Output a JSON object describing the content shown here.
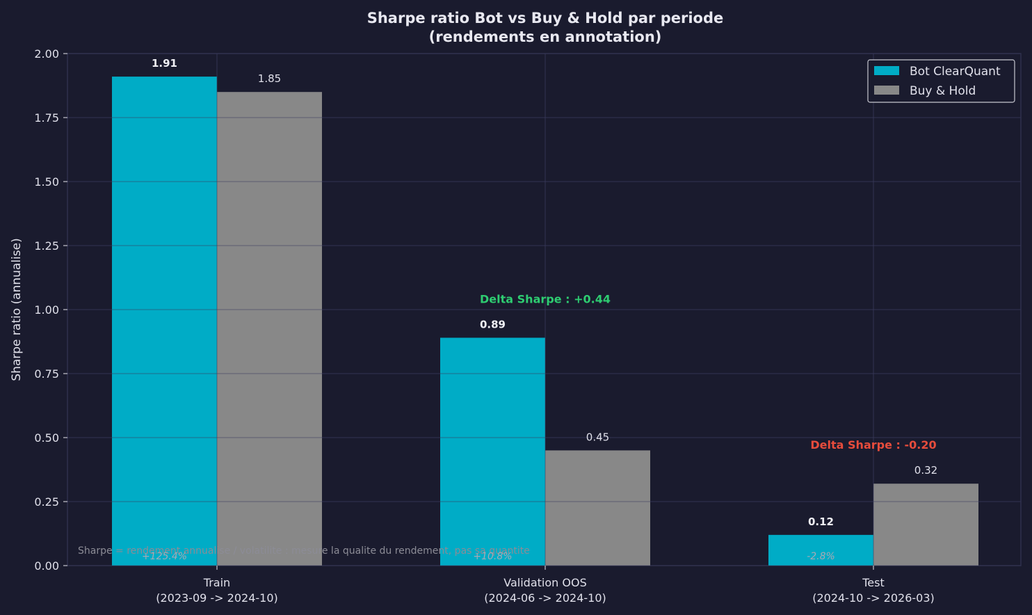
{
  "chart_data": {
    "type": "bar",
    "title": "Sharpe ratio Bot vs Buy & Hold par periode",
    "subtitle": "(rendements en annotation)",
    "ylabel": "Sharpe ratio (annualise)",
    "xlabel": "",
    "ylim": [
      0,
      2.0
    ],
    "yticks": [
      "0.00",
      "0.25",
      "0.50",
      "0.75",
      "1.00",
      "1.25",
      "1.50",
      "1.75",
      "2.00"
    ],
    "categories": [
      {
        "name": "Train",
        "period": "(2023-09 -> 2024-10)"
      },
      {
        "name": "Validation OOS",
        "period": "(2024-06 -> 2024-10)"
      },
      {
        "name": "Test",
        "period": "(2024-10 -> 2026-03)"
      }
    ],
    "series": [
      {
        "name": "Bot ClearQuant",
        "color": "#00acc6",
        "values": [
          1.91,
          0.89,
          0.12
        ],
        "labels": [
          "1.91",
          "0.89",
          "0.12"
        ]
      },
      {
        "name": "Buy & Hold",
        "color": "#888888",
        "values": [
          1.85,
          0.45,
          0.32
        ],
        "labels": [
          "1.85",
          "0.45",
          "0.32"
        ]
      }
    ],
    "return_annotations": [
      "+125.4%",
      "+10.8%",
      "-2.8%"
    ],
    "delta_annotations": [
      {
        "category_index": 1,
        "text": "Delta Sharpe : +0.44",
        "color": "#2ecc71",
        "y": 1.04
      },
      {
        "category_index": 2,
        "text": "Delta Sharpe : -0.20",
        "color": "#e74c3c",
        "y": 0.47
      }
    ],
    "footnote": "Sharpe = rendement annualise / volatilite : mesure la qualite du rendement, pas sa quantite",
    "legend_position": "top-right",
    "grid": true
  }
}
